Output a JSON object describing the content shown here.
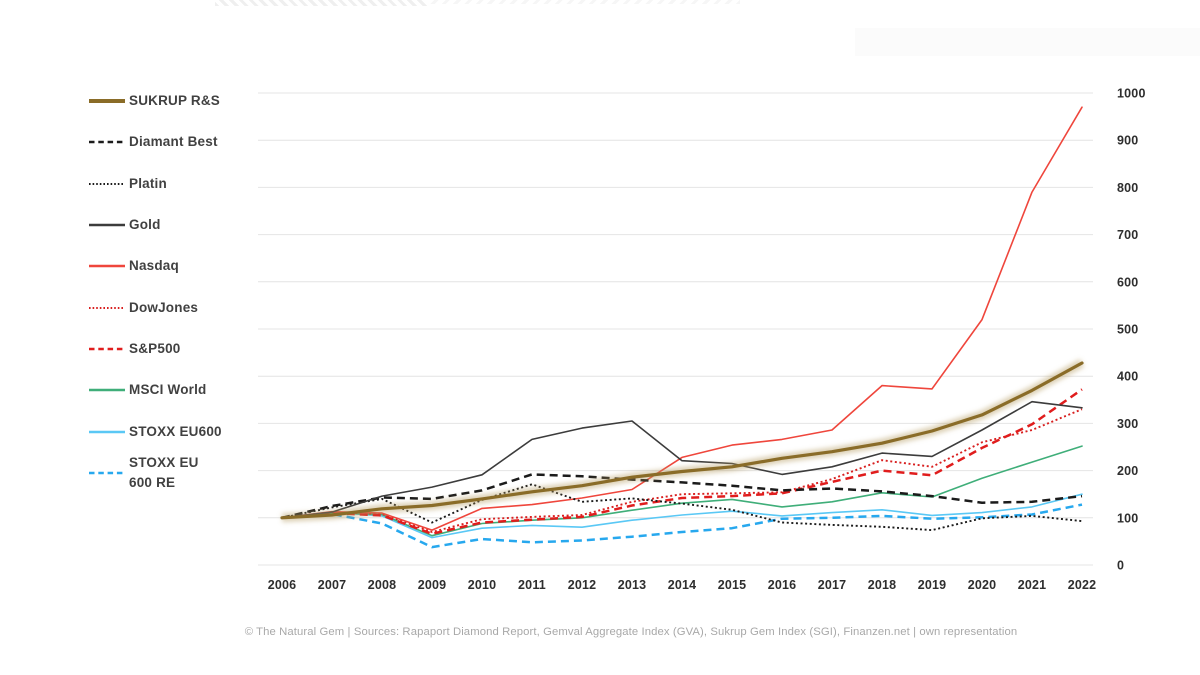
{
  "page": {
    "background": "#ffffff"
  },
  "decorations": {
    "cropped_title_remnant_color": "#e2e2e2",
    "watermark_box_color": "#fbfbfb"
  },
  "legend": {
    "items": [
      {
        "label": "SUKRUP R&S",
        "label_lines": [
          "SUKRUP R&S"
        ],
        "color": "#8a6c28",
        "style": "solid",
        "thick": true
      },
      {
        "label": "Diamant Best",
        "label_lines": [
          "Diamant Best"
        ],
        "color": "#1b1b1b",
        "style": "dashed",
        "thick": false
      },
      {
        "label": "Platin",
        "label_lines": [
          "Platin"
        ],
        "color": "#1b1b1b",
        "style": "dotted",
        "thick": false
      },
      {
        "label": "Gold",
        "label_lines": [
          "Gold"
        ],
        "color": "#3c3c3c",
        "style": "solid",
        "thick": false
      },
      {
        "label": "Nasdaq",
        "label_lines": [
          "Nasdaq"
        ],
        "color": "#ef463c",
        "style": "solid",
        "thick": false
      },
      {
        "label": "DowJones",
        "label_lines": [
          "DowJones"
        ],
        "color": "#d81f1f",
        "style": "dotted",
        "thick": false
      },
      {
        "label": "S&P500",
        "label_lines": [
          "S&P500"
        ],
        "color": "#e01d1d",
        "style": "dashed",
        "thick": false
      },
      {
        "label": "MSCI World",
        "label_lines": [
          "MSCI World"
        ],
        "color": "#3fae79",
        "style": "solid",
        "thick": false
      },
      {
        "label": "STOXX EU600",
        "label_lines": [
          "STOXX EU600"
        ],
        "color": "#5ac8f5",
        "style": "solid",
        "thick": false
      },
      {
        "label": "STOXX EU 600 RE",
        "label_lines": [
          "STOXX EU",
          "600 RE"
        ],
        "color": "#27a8ee",
        "style": "dashed",
        "thick": false
      }
    ]
  },
  "chart_data": {
    "type": "line",
    "title": "",
    "xlabel": "",
    "ylabel": "",
    "x": [
      2006,
      2007,
      2008,
      2009,
      2010,
      2011,
      2012,
      2013,
      2014,
      2015,
      2016,
      2017,
      2018,
      2019,
      2020,
      2021,
      2022
    ],
    "y_axis": {
      "min": 0,
      "max": 1000,
      "step": 100,
      "side": "right",
      "ticks": [
        0,
        100,
        200,
        300,
        400,
        500,
        600,
        700,
        800,
        900,
        1000
      ]
    },
    "grid": true,
    "legend_position": "left",
    "series": [
      {
        "name": "SUKRUP R&S",
        "color": "#8a6c28",
        "style": "solid",
        "thick": true,
        "values": [
          100,
          106,
          119,
          126,
          140,
          155,
          168,
          186,
          198,
          208,
          226,
          240,
          258,
          284,
          318,
          370,
          428
        ]
      },
      {
        "name": "Diamant Best",
        "color": "#1b1b1b",
        "style": "dashed",
        "thick": false,
        "values": [
          100,
          125,
          143,
          140,
          158,
          192,
          188,
          181,
          175,
          168,
          158,
          162,
          156,
          146,
          132,
          134,
          146
        ]
      },
      {
        "name": "Platin",
        "color": "#1b1b1b",
        "style": "dotted",
        "thick": false,
        "values": [
          100,
          122,
          140,
          90,
          138,
          171,
          134,
          141,
          130,
          117,
          90,
          85,
          81,
          74,
          99,
          104,
          93
        ]
      },
      {
        "name": "Gold",
        "color": "#3c3c3c",
        "style": "solid",
        "thick": false,
        "values": [
          100,
          112,
          146,
          165,
          191,
          266,
          290,
          305,
          221,
          215,
          192,
          208,
          237,
          230,
          286,
          346,
          333
        ]
      },
      {
        "name": "Nasdaq",
        "color": "#ef463c",
        "style": "solid",
        "thick": false,
        "values": [
          100,
          113,
          110,
          74,
          120,
          128,
          142,
          160,
          228,
          254,
          266,
          286,
          380,
          373,
          520,
          790,
          970
        ]
      },
      {
        "name": "DowJones",
        "color": "#d81f1f",
        "style": "dotted",
        "thick": false,
        "values": [
          100,
          112,
          108,
          70,
          97,
          102,
          106,
          134,
          150,
          152,
          154,
          182,
          222,
          208,
          260,
          286,
          330
        ]
      },
      {
        "name": "S&P500",
        "color": "#e01d1d",
        "style": "dashed",
        "thick": false,
        "values": [
          100,
          110,
          105,
          66,
          90,
          96,
          102,
          126,
          142,
          146,
          152,
          176,
          200,
          190,
          248,
          298,
          372
        ]
      },
      {
        "name": "MSCI World",
        "color": "#3fae79",
        "style": "solid",
        "thick": false,
        "values": [
          100,
          110,
          107,
          62,
          88,
          95,
          100,
          116,
          131,
          139,
          123,
          134,
          153,
          144,
          184,
          218,
          252
        ]
      },
      {
        "name": "STOXX EU600",
        "color": "#5ac8f5",
        "style": "solid",
        "thick": false,
        "values": [
          100,
          112,
          104,
          58,
          78,
          84,
          80,
          95,
          106,
          114,
          104,
          111,
          117,
          105,
          111,
          123,
          150
        ]
      },
      {
        "name": "STOXX EU 600 RE",
        "color": "#27a8ee",
        "style": "dashed",
        "thick": false,
        "values": [
          100,
          108,
          88,
          38,
          55,
          48,
          52,
          60,
          70,
          78,
          98,
          100,
          104,
          98,
          101,
          107,
          128
        ]
      }
    ]
  },
  "footer": {
    "text": "© The Natural Gem | Sources: Rapaport Diamond Report, Gemval Aggregate Index (GVA), Sukrup Gem Index (SGI), Finanzen.net | own representation"
  }
}
